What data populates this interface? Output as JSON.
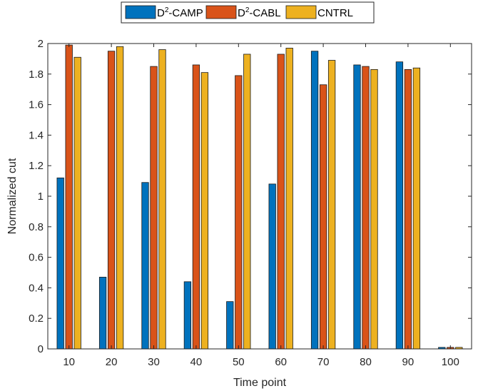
{
  "chart_data": {
    "type": "bar",
    "title": "",
    "xlabel": "Time point",
    "ylabel": "Normalized cut",
    "ylim": [
      0,
      2
    ],
    "yticks": [
      0,
      0.2,
      0.4,
      0.6,
      0.8,
      1,
      1.2,
      1.4,
      1.6,
      1.8,
      2
    ],
    "ytick_labels": [
      "0",
      "0.2",
      "0.4",
      "0.6",
      "0.8",
      "1",
      "1.2",
      "1.4",
      "1.6",
      "1.8",
      "2"
    ],
    "categories": [
      "10",
      "20",
      "30",
      "40",
      "50",
      "60",
      "70",
      "80",
      "90",
      "100"
    ],
    "grid": false,
    "legend_placement": "top-center",
    "series": [
      {
        "name": "D2-CAMP",
        "legend_base": "D",
        "legend_sup": "2",
        "legend_rest": "-CAMP",
        "color": "#0072bd",
        "values": [
          1.12,
          0.47,
          1.09,
          0.44,
          0.31,
          1.08,
          1.95,
          1.86,
          1.88,
          0.01
        ]
      },
      {
        "name": "D2-CABL",
        "legend_base": "D",
        "legend_sup": "2",
        "legend_rest": "-CABL",
        "color": "#d95319",
        "values": [
          1.99,
          1.95,
          1.85,
          1.86,
          1.79,
          1.93,
          1.73,
          1.85,
          1.83,
          0.01
        ]
      },
      {
        "name": "CNTRL",
        "legend_base": "CNTRL",
        "legend_sup": "",
        "legend_rest": "",
        "color": "#edb120",
        "values": [
          1.91,
          1.98,
          1.96,
          1.81,
          1.93,
          1.97,
          1.89,
          1.83,
          1.84,
          0.01
        ]
      }
    ]
  }
}
